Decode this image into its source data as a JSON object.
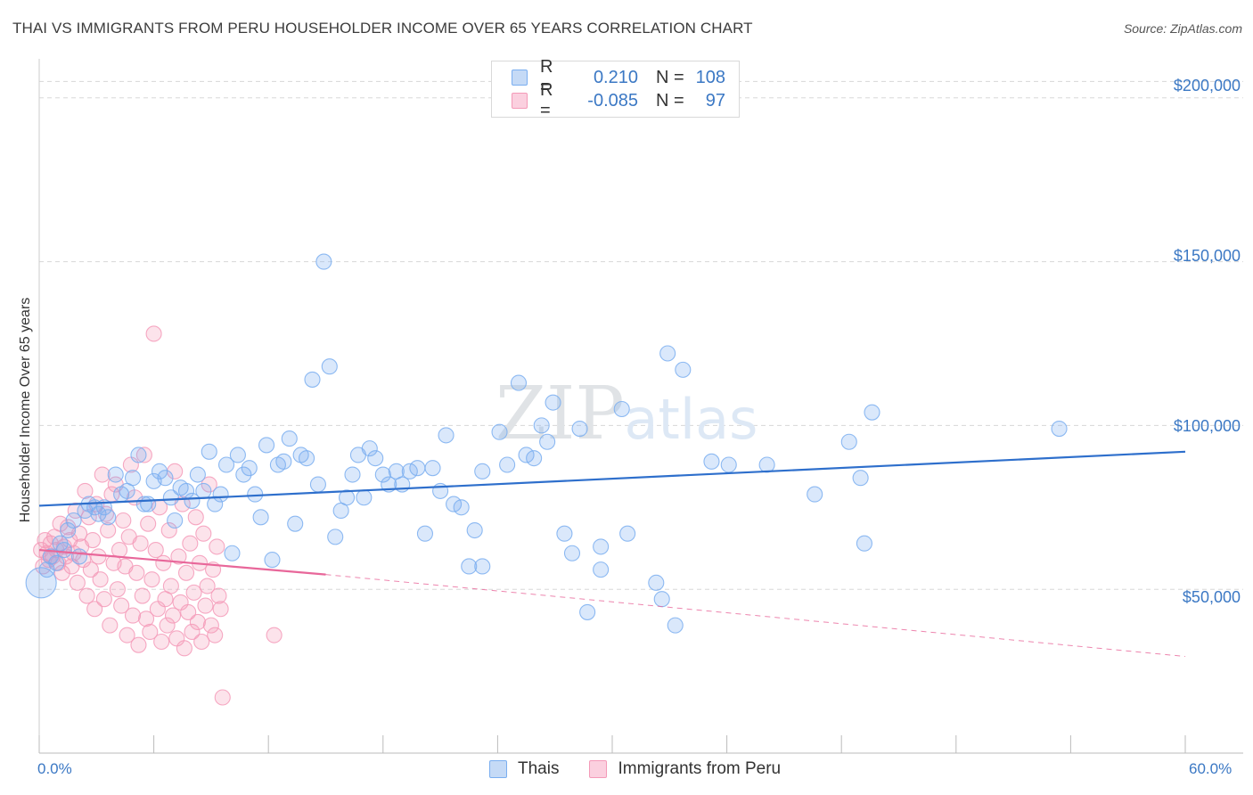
{
  "header": {
    "title": "THAI VS IMMIGRANTS FROM PERU HOUSEHOLDER INCOME OVER 65 YEARS CORRELATION CHART",
    "source": "Source: ZipAtlas.com"
  },
  "watermark": "ZIPatlas",
  "colors": {
    "thai": "#7aaef0",
    "thai_line": "#2e6fcc",
    "peru": "#f49ab8",
    "peru_line": "#e8679a",
    "grid": "#d8d8d8",
    "tick_text": "#3b78c4"
  },
  "legend": {
    "rows": [
      {
        "r_label": "R =",
        "r_value": "0.210",
        "n_label": "N =",
        "n_value": "108"
      },
      {
        "r_label": "R =",
        "r_value": "-0.085",
        "n_label": "N =",
        "n_value": "97"
      }
    ]
  },
  "bottom_legend": {
    "items": [
      {
        "label": "Thais"
      },
      {
        "label": "Immigrants from Peru"
      }
    ]
  },
  "chart_data": {
    "type": "scatter",
    "ylabel": "Householder Income Over 65 years",
    "xlim": [
      0,
      60
    ],
    "ylim": [
      0,
      210000
    ],
    "x_tick_labels": [
      "0.0%",
      "60.0%"
    ],
    "y_ticks": [
      {
        "value": 50000,
        "label": "$50,000"
      },
      {
        "value": 100000,
        "label": "$100,000"
      },
      {
        "value": 150000,
        "label": "$150,000"
      },
      {
        "value": 200000,
        "label": "$200,000"
      }
    ],
    "grid": true,
    "series": [
      {
        "name": "Thais",
        "points": [
          [
            0.1,
            52000
          ],
          [
            0.4,
            56000
          ],
          [
            0.6,
            60000
          ],
          [
            0.9,
            58000
          ],
          [
            1.1,
            64000
          ],
          [
            1.3,
            62000
          ],
          [
            1.5,
            68000
          ],
          [
            1.8,
            71000
          ],
          [
            2.1,
            60000
          ],
          [
            2.4,
            74000
          ],
          [
            2.6,
            76000
          ],
          [
            2.9,
            75000
          ],
          [
            3.1,
            73000
          ],
          [
            3.4,
            75000
          ],
          [
            3.6,
            72000
          ],
          [
            4.0,
            85000
          ],
          [
            4.3,
            79000
          ],
          [
            4.6,
            80000
          ],
          [
            4.9,
            84000
          ],
          [
            5.2,
            91000
          ],
          [
            5.5,
            76000
          ],
          [
            5.7,
            76000
          ],
          [
            6.0,
            83000
          ],
          [
            6.3,
            86000
          ],
          [
            6.6,
            84000
          ],
          [
            6.9,
            78000
          ],
          [
            7.1,
            71000
          ],
          [
            7.4,
            81000
          ],
          [
            7.7,
            80000
          ],
          [
            8.0,
            77000
          ],
          [
            8.3,
            85000
          ],
          [
            8.6,
            80000
          ],
          [
            8.9,
            92000
          ],
          [
            9.2,
            76000
          ],
          [
            9.5,
            79000
          ],
          [
            9.8,
            88000
          ],
          [
            10.1,
            61000
          ],
          [
            10.4,
            91000
          ],
          [
            10.7,
            85000
          ],
          [
            11.0,
            87000
          ],
          [
            11.3,
            79000
          ],
          [
            11.6,
            72000
          ],
          [
            11.9,
            94000
          ],
          [
            12.2,
            59000
          ],
          [
            12.5,
            88000
          ],
          [
            12.8,
            89000
          ],
          [
            13.1,
            96000
          ],
          [
            13.4,
            70000
          ],
          [
            13.7,
            91000
          ],
          [
            14.0,
            90000
          ],
          [
            14.3,
            114000
          ],
          [
            14.6,
            82000
          ],
          [
            14.9,
            150000
          ],
          [
            15.2,
            118000
          ],
          [
            15.5,
            66000
          ],
          [
            15.8,
            74000
          ],
          [
            16.1,
            78000
          ],
          [
            16.4,
            85000
          ],
          [
            16.7,
            91000
          ],
          [
            17.0,
            78000
          ],
          [
            17.3,
            93000
          ],
          [
            17.6,
            90000
          ],
          [
            18.0,
            85000
          ],
          [
            18.3,
            82000
          ],
          [
            18.7,
            86000
          ],
          [
            19.0,
            82000
          ],
          [
            19.4,
            86000
          ],
          [
            19.8,
            87000
          ],
          [
            20.2,
            67000
          ],
          [
            20.6,
            87000
          ],
          [
            21.0,
            80000
          ],
          [
            21.3,
            97000
          ],
          [
            21.7,
            76000
          ],
          [
            22.1,
            75000
          ],
          [
            22.5,
            57000
          ],
          [
            22.8,
            68000
          ],
          [
            23.2,
            86000
          ],
          [
            23.2,
            57000
          ],
          [
            24.1,
            98000
          ],
          [
            24.5,
            88000
          ],
          [
            25.1,
            113000
          ],
          [
            25.5,
            91000
          ],
          [
            25.9,
            90000
          ],
          [
            26.3,
            100000
          ],
          [
            26.6,
            95000
          ],
          [
            26.9,
            107000
          ],
          [
            27.5,
            67000
          ],
          [
            27.9,
            61000
          ],
          [
            28.3,
            99000
          ],
          [
            28.7,
            43000
          ],
          [
            29.4,
            63000
          ],
          [
            29.4,
            56000
          ],
          [
            30.5,
            105000
          ],
          [
            30.8,
            67000
          ],
          [
            32.3,
            52000
          ],
          [
            32.6,
            47000
          ],
          [
            32.9,
            122000
          ],
          [
            33.3,
            39000
          ],
          [
            33.7,
            117000
          ],
          [
            35.2,
            89000
          ],
          [
            36.1,
            88000
          ],
          [
            38.1,
            88000
          ],
          [
            40.6,
            79000
          ],
          [
            42.4,
            95000
          ],
          [
            43.0,
            84000
          ],
          [
            43.2,
            64000
          ],
          [
            43.6,
            104000
          ],
          [
            53.4,
            99000
          ]
        ]
      },
      {
        "name": "Immigrants from Peru",
        "points": [
          [
            0.1,
            62000
          ],
          [
            0.2,
            57000
          ],
          [
            0.3,
            65000
          ],
          [
            0.4,
            61000
          ],
          [
            0.5,
            59000
          ],
          [
            0.6,
            64000
          ],
          [
            0.7,
            60000
          ],
          [
            0.8,
            66000
          ],
          [
            0.9,
            62000
          ],
          [
            1.0,
            58000
          ],
          [
            1.1,
            70000
          ],
          [
            1.2,
            55000
          ],
          [
            1.3,
            63000
          ],
          [
            1.4,
            60000
          ],
          [
            1.5,
            69000
          ],
          [
            1.6,
            65000
          ],
          [
            1.7,
            57000
          ],
          [
            1.8,
            61000
          ],
          [
            1.9,
            74000
          ],
          [
            2.0,
            52000
          ],
          [
            2.1,
            67000
          ],
          [
            2.2,
            63000
          ],
          [
            2.3,
            59000
          ],
          [
            2.4,
            80000
          ],
          [
            2.5,
            48000
          ],
          [
            2.6,
            72000
          ],
          [
            2.7,
            56000
          ],
          [
            2.8,
            65000
          ],
          [
            2.9,
            44000
          ],
          [
            3.0,
            76000
          ],
          [
            3.1,
            60000
          ],
          [
            3.2,
            53000
          ],
          [
            3.3,
            85000
          ],
          [
            3.4,
            47000
          ],
          [
            3.5,
            73000
          ],
          [
            3.6,
            68000
          ],
          [
            3.7,
            39000
          ],
          [
            3.8,
            79000
          ],
          [
            3.9,
            58000
          ],
          [
            4.0,
            82000
          ],
          [
            4.1,
            50000
          ],
          [
            4.2,
            62000
          ],
          [
            4.3,
            45000
          ],
          [
            4.4,
            71000
          ],
          [
            4.5,
            57000
          ],
          [
            4.6,
            36000
          ],
          [
            4.7,
            66000
          ],
          [
            4.8,
            88000
          ],
          [
            4.9,
            42000
          ],
          [
            5.0,
            78000
          ],
          [
            5.1,
            55000
          ],
          [
            5.2,
            33000
          ],
          [
            5.3,
            64000
          ],
          [
            5.4,
            48000
          ],
          [
            5.5,
            91000
          ],
          [
            5.6,
            41000
          ],
          [
            5.7,
            70000
          ],
          [
            5.8,
            37000
          ],
          [
            5.9,
            53000
          ],
          [
            6.0,
            128000
          ],
          [
            6.1,
            62000
          ],
          [
            6.2,
            44000
          ],
          [
            6.3,
            75000
          ],
          [
            6.4,
            34000
          ],
          [
            6.5,
            58000
          ],
          [
            6.6,
            47000
          ],
          [
            6.7,
            39000
          ],
          [
            6.8,
            68000
          ],
          [
            6.9,
            51000
          ],
          [
            7.0,
            42000
          ],
          [
            7.1,
            86000
          ],
          [
            7.2,
            35000
          ],
          [
            7.3,
            60000
          ],
          [
            7.4,
            46000
          ],
          [
            7.5,
            76000
          ],
          [
            7.6,
            32000
          ],
          [
            7.7,
            55000
          ],
          [
            7.8,
            43000
          ],
          [
            7.9,
            64000
          ],
          [
            8.0,
            37000
          ],
          [
            8.1,
            49000
          ],
          [
            8.2,
            72000
          ],
          [
            8.3,
            40000
          ],
          [
            8.4,
            58000
          ],
          [
            8.5,
            34000
          ],
          [
            8.6,
            67000
          ],
          [
            8.7,
            45000
          ],
          [
            8.8,
            51000
          ],
          [
            8.9,
            82000
          ],
          [
            9.0,
            39000
          ],
          [
            9.1,
            56000
          ],
          [
            9.2,
            36000
          ],
          [
            9.3,
            63000
          ],
          [
            9.4,
            48000
          ],
          [
            9.5,
            44000
          ],
          [
            9.6,
            17000
          ],
          [
            12.3,
            36000
          ]
        ]
      }
    ],
    "trendlines": [
      {
        "series": "Thais",
        "x": [
          0,
          60
        ],
        "y": [
          75500,
          92000
        ],
        "style": "solid"
      },
      {
        "series": "Immigrants from Peru",
        "x": [
          0,
          15
        ],
        "y": [
          62000,
          54500
        ],
        "style": "solid"
      },
      {
        "series": "Immigrants from Peru",
        "x": [
          15,
          60
        ],
        "y": [
          54500,
          29500
        ],
        "style": "dashed"
      }
    ]
  }
}
